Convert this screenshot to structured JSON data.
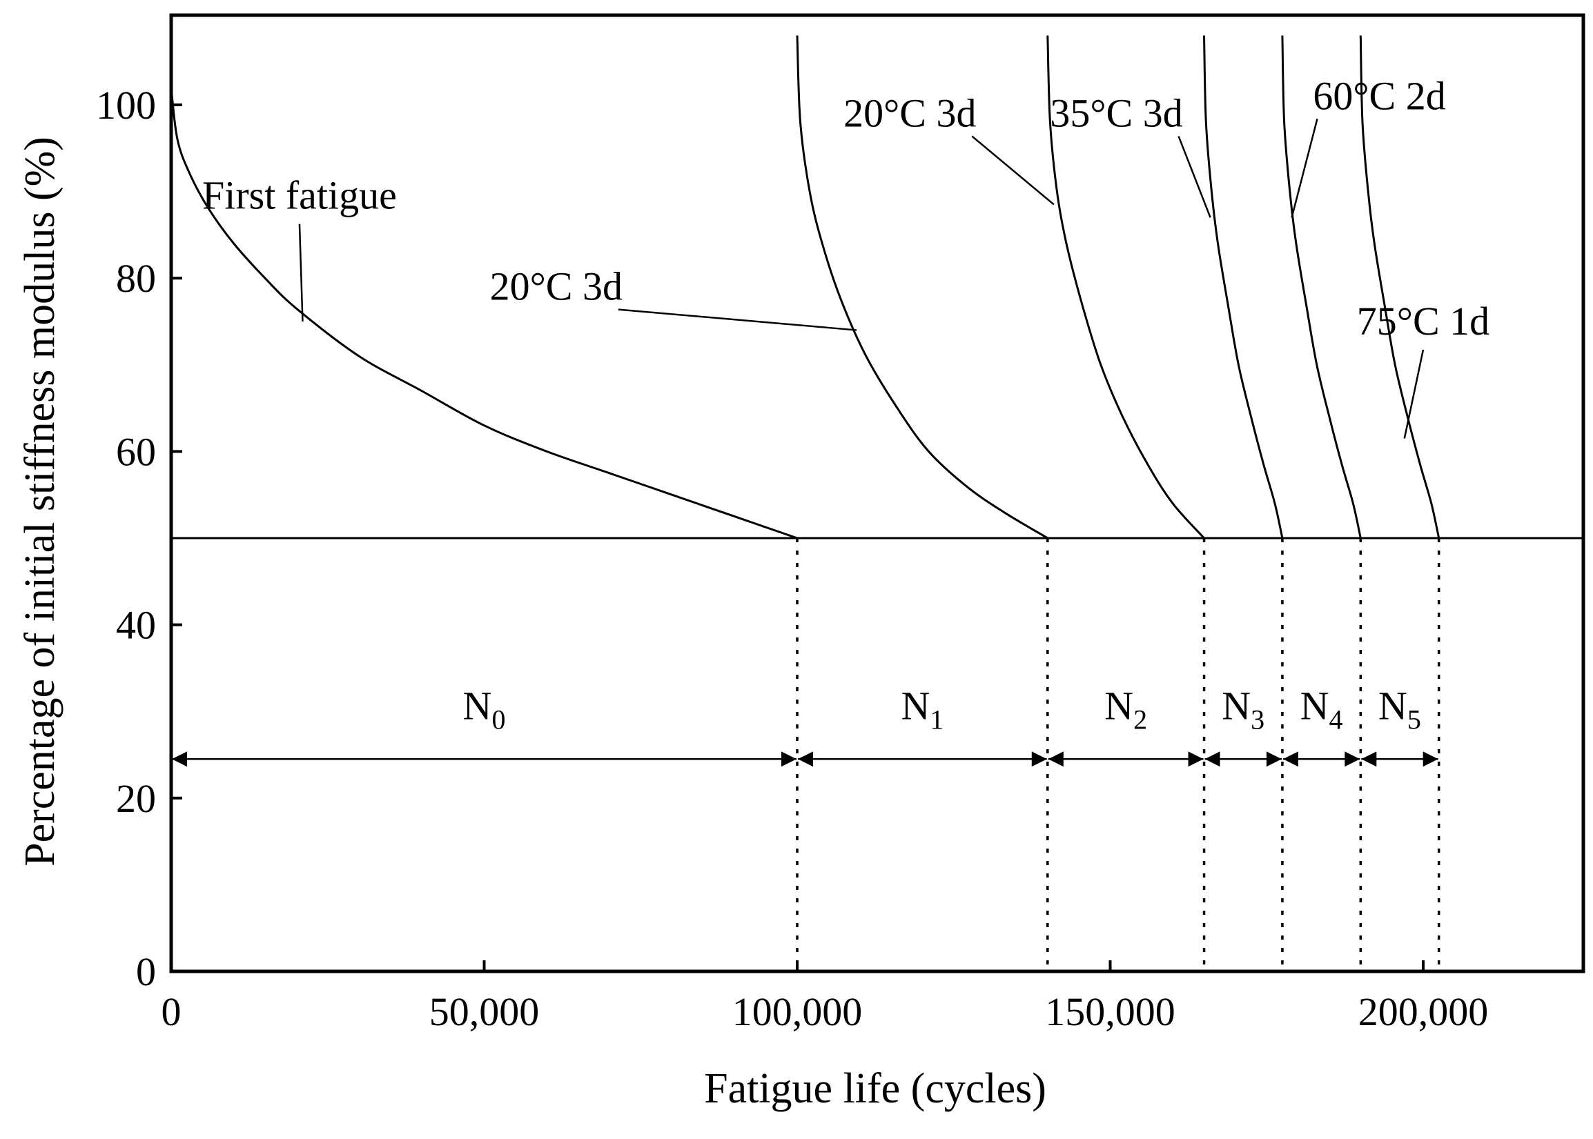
{
  "chart_data": {
    "type": "line",
    "xlabel": "Fatigue life (cycles)",
    "ylabel": "Percentage of initial stiffness modulus (%)",
    "xlim": [
      0,
      225000
    ],
    "ylim": [
      0,
      110
    ],
    "x_ticks": [
      {
        "value": 0,
        "label": "0"
      },
      {
        "value": 50000,
        "label": "50,000"
      },
      {
        "value": 100000,
        "label": "100,000"
      },
      {
        "value": 150000,
        "label": "150,000"
      },
      {
        "value": 200000,
        "label": "200,000"
      }
    ],
    "y_ticks": [
      {
        "value": 0,
        "label": "0"
      },
      {
        "value": 20,
        "label": "20"
      },
      {
        "value": 40,
        "label": "40"
      },
      {
        "value": 60,
        "label": "60"
      },
      {
        "value": 80,
        "label": "80"
      },
      {
        "value": 100,
        "label": "100"
      }
    ],
    "failure_level": 50,
    "curves": [
      {
        "label": "First fatigue",
        "points": [
          [
            0,
            102
          ],
          [
            1000,
            96
          ],
          [
            3000,
            92
          ],
          [
            6000,
            88
          ],
          [
            10000,
            84
          ],
          [
            15000,
            80
          ],
          [
            20000,
            76.5
          ],
          [
            30000,
            71
          ],
          [
            40000,
            67
          ],
          [
            50000,
            63
          ],
          [
            60000,
            60
          ],
          [
            70000,
            57.5
          ],
          [
            80000,
            55
          ],
          [
            90000,
            52.5
          ],
          [
            100000,
            50
          ]
        ]
      },
      {
        "label": "20°C 3d",
        "points": [
          [
            100000,
            108
          ],
          [
            100500,
            98
          ],
          [
            102000,
            90
          ],
          [
            104000,
            84
          ],
          [
            107000,
            77.5
          ],
          [
            111000,
            71
          ],
          [
            116000,
            65
          ],
          [
            121000,
            60
          ],
          [
            127000,
            56
          ],
          [
            133000,
            53
          ],
          [
            140000,
            50
          ]
        ]
      },
      {
        "label": "20°C 3d",
        "points": [
          [
            140000,
            108
          ],
          [
            140400,
            98
          ],
          [
            141500,
            90
          ],
          [
            143000,
            84
          ],
          [
            145500,
            77
          ],
          [
            148500,
            70
          ],
          [
            152000,
            64
          ],
          [
            156000,
            58.5
          ],
          [
            160000,
            54
          ],
          [
            165000,
            50
          ]
        ]
      },
      {
        "label": "35°C 3d",
        "points": [
          [
            165000,
            108
          ],
          [
            165300,
            98
          ],
          [
            166200,
            90
          ],
          [
            167200,
            84
          ],
          [
            168800,
            77
          ],
          [
            170500,
            70
          ],
          [
            172500,
            64
          ],
          [
            174500,
            58.5
          ],
          [
            176300,
            54
          ],
          [
            177500,
            50
          ]
        ]
      },
      {
        "label": "60°C 2d",
        "points": [
          [
            177500,
            108
          ],
          [
            177800,
            98
          ],
          [
            178700,
            90
          ],
          [
            179700,
            84
          ],
          [
            181300,
            77
          ],
          [
            183000,
            70
          ],
          [
            185000,
            64
          ],
          [
            187000,
            58.5
          ],
          [
            188800,
            54
          ],
          [
            190000,
            50
          ]
        ]
      },
      {
        "label": "75°C 1d",
        "points": [
          [
            190000,
            108
          ],
          [
            190300,
            98
          ],
          [
            191200,
            90
          ],
          [
            192200,
            84
          ],
          [
            193800,
            77
          ],
          [
            195500,
            70
          ],
          [
            197500,
            64
          ],
          [
            199500,
            58.5
          ],
          [
            201300,
            54
          ],
          [
            202500,
            50
          ]
        ]
      }
    ],
    "annotations": [
      {
        "text": "First fatigue",
        "text_at": [
          20500,
          88
        ],
        "arrow_to": [
          21000,
          75
        ]
      },
      {
        "text": "20°C 3d",
        "text_at": [
          61500,
          77.5
        ],
        "arrow_to": [
          109500,
          74
        ]
      },
      {
        "text": "20°C 3d",
        "text_at": [
          118000,
          97.5
        ],
        "arrow_to": [
          141000,
          88.5
        ]
      },
      {
        "text": "35°C 3d",
        "text_at": [
          151000,
          97.5
        ],
        "arrow_to": [
          166000,
          87
        ]
      },
      {
        "text": "60°C 2d",
        "text_at": [
          193000,
          99.5
        ],
        "arrow_to": [
          179000,
          87
        ]
      },
      {
        "text": "75°C 1d",
        "text_at": [
          200000,
          73.5
        ],
        "arrow_to": [
          197000,
          61.5
        ]
      }
    ],
    "failure_points": [
      100000,
      140000,
      165000,
      177500,
      190000,
      202500
    ],
    "intervals": {
      "y": 24.5,
      "segments": [
        {
          "label": "N",
          "sub": "0",
          "from": 0,
          "to": 100000
        },
        {
          "label": "N",
          "sub": "1",
          "from": 100000,
          "to": 140000
        },
        {
          "label": "N",
          "sub": "2",
          "from": 140000,
          "to": 165000
        },
        {
          "label": "N",
          "sub": "3",
          "from": 165000,
          "to": 177500
        },
        {
          "label": "N",
          "sub": "4",
          "from": 177500,
          "to": 190000
        },
        {
          "label": "N",
          "sub": "5",
          "from": 190000,
          "to": 202500
        }
      ]
    }
  }
}
